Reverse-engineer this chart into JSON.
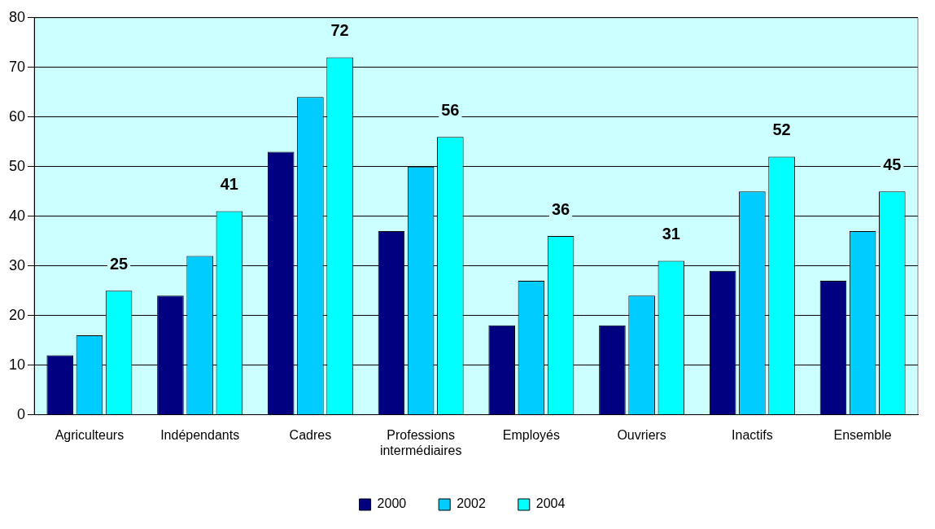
{
  "chart_data": {
    "type": "bar",
    "categories": [
      "Agriculteurs",
      "Indépendants",
      "Cadres",
      "Professions intermédiaires",
      "Employés",
      "Ouvriers",
      "Inactifs",
      "Ensemble"
    ],
    "series": [
      {
        "name": "2000",
        "color": "#000080",
        "values": [
          12,
          24,
          53,
          37,
          18,
          18,
          29,
          27
        ]
      },
      {
        "name": "2002",
        "color": "#00ccff",
        "values": [
          16,
          32,
          64,
          50,
          27,
          24,
          45,
          37
        ]
      },
      {
        "name": "2004",
        "color": "#00ffff",
        "values": [
          25,
          41,
          72,
          56,
          36,
          31,
          52,
          45
        ],
        "value_labels": [
          "25",
          "41",
          "72",
          "56",
          "36",
          "31",
          "52",
          "45"
        ]
      }
    ],
    "ylim": [
      0,
      80
    ],
    "yticks": [
      0,
      10,
      20,
      30,
      40,
      50,
      60,
      70,
      80
    ],
    "grid": "y",
    "legend": "bottom"
  }
}
